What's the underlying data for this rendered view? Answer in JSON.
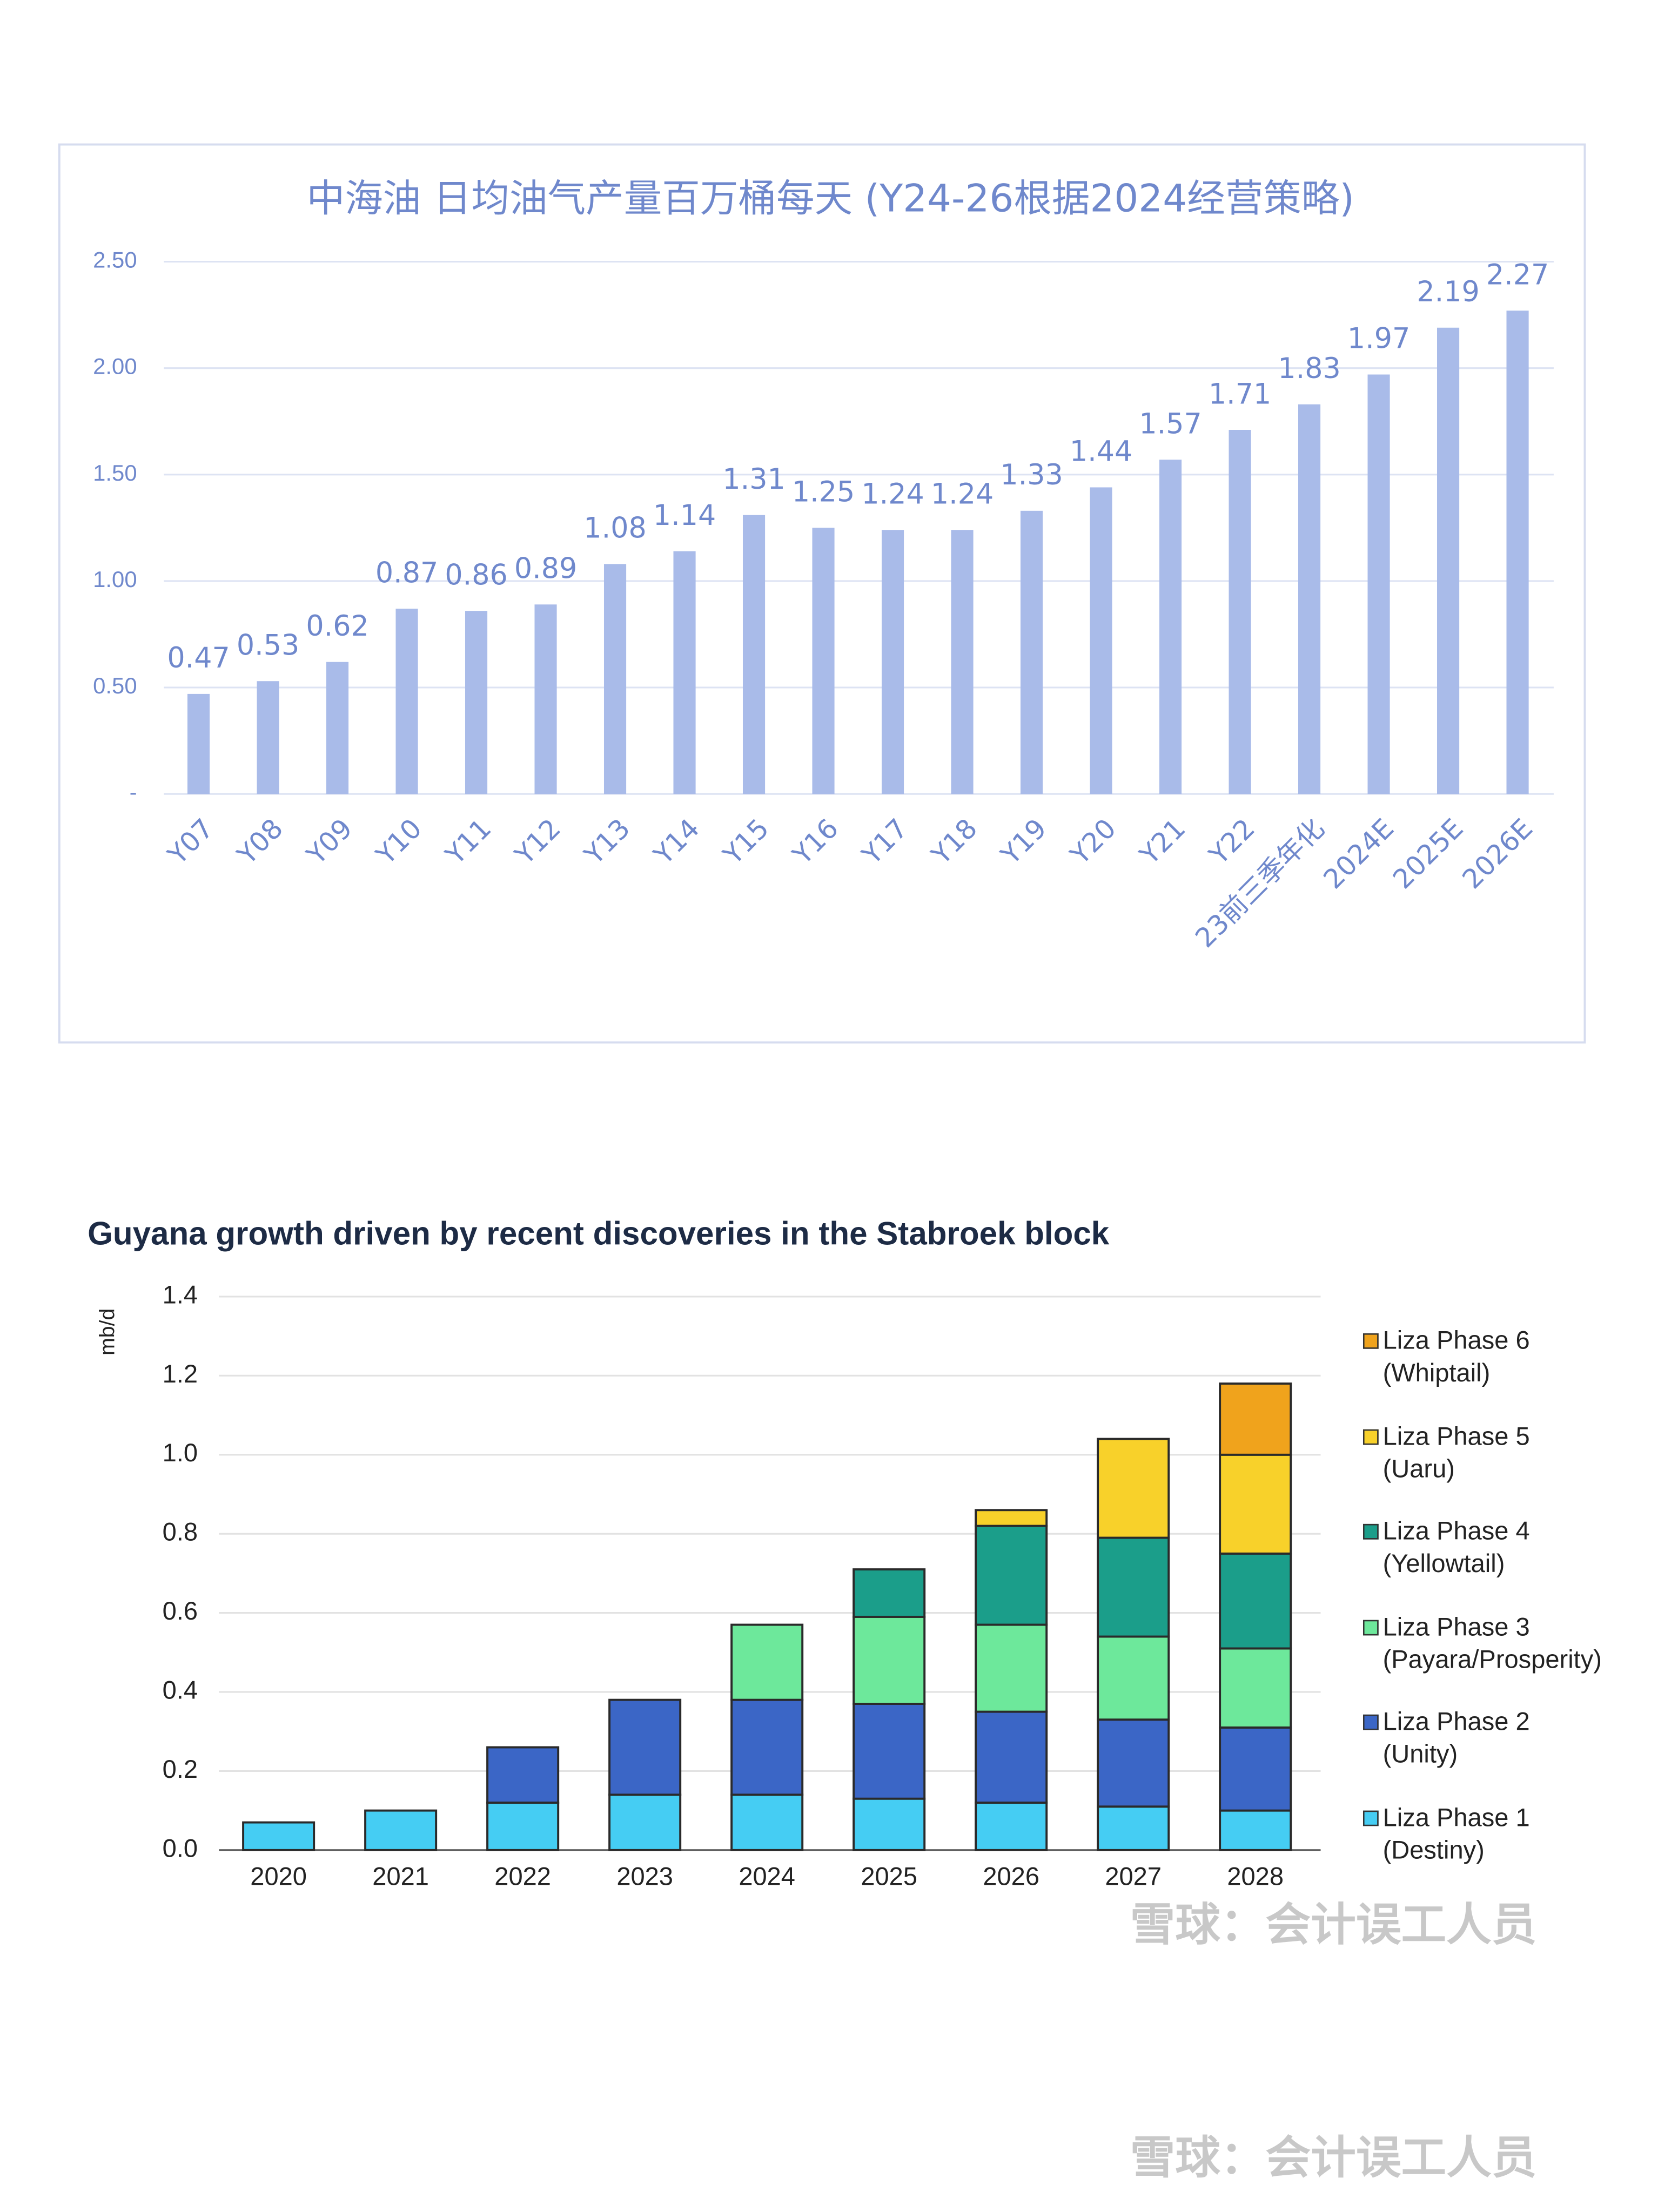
{
  "chart_data": [
    {
      "type": "bar",
      "title": "中海油 日均油气产量百万桶每天 (Y24-26根据2024经营策略)",
      "categories": [
        "Y07",
        "Y08",
        "Y09",
        "Y10",
        "Y11",
        "Y12",
        "Y13",
        "Y14",
        "Y15",
        "Y16",
        "Y17",
        "Y18",
        "Y19",
        "Y20",
        "Y21",
        "Y22",
        "23前三季年化",
        "2024E",
        "2025E",
        "2026E"
      ],
      "values": [
        0.47,
        0.53,
        0.62,
        0.87,
        0.86,
        0.89,
        1.08,
        1.14,
        1.31,
        1.25,
        1.24,
        1.24,
        1.33,
        1.44,
        1.57,
        1.71,
        1.83,
        1.97,
        2.19,
        2.27
      ],
      "color": "#a9bbe9",
      "ylim": [
        0,
        2.5
      ],
      "yticks": [
        {
          "value": 0,
          "label": "-"
        },
        {
          "value": 0.5,
          "label": "0.50"
        },
        {
          "value": 1,
          "label": "1.00"
        },
        {
          "value": 1.5,
          "label": "1.50"
        },
        {
          "value": 2,
          "label": "2.00"
        },
        {
          "value": 2.5,
          "label": "2.50"
        }
      ],
      "grid": true
    },
    {
      "type": "stacked_bar",
      "title": "Guyana growth driven by recent discoveries in the Stabroek block",
      "y_label": "mb/d",
      "categories": [
        "2020",
        "2021",
        "2022",
        "2023",
        "2024",
        "2025",
        "2026",
        "2027",
        "2028"
      ],
      "series": [
        {
          "name": "Liza Phase 1 (Destiny)",
          "color": "#45cdf3",
          "values": [
            0.07,
            0.1,
            0.12,
            0.14,
            0.14,
            0.13,
            0.12,
            0.11,
            0.1
          ]
        },
        {
          "name": "Liza Phase 2 (Unity)",
          "color": "#3b66c6",
          "values": [
            null,
            null,
            0.14,
            0.24,
            0.24,
            0.24,
            0.23,
            0.22,
            0.21
          ]
        },
        {
          "name": "Liza Phase 3 (Payara/Prosperity)",
          "color": "#6de89b",
          "values": [
            null,
            null,
            null,
            null,
            0.19,
            0.22,
            0.22,
            0.21,
            0.2
          ]
        },
        {
          "name": "Liza Phase 4 (Yellowtail)",
          "color": "#1b9e8a",
          "values": [
            null,
            null,
            null,
            null,
            null,
            0.12,
            0.25,
            0.25,
            0.24
          ]
        },
        {
          "name": "Liza Phase 5 (Uaru)",
          "color": "#f8d12a",
          "values": [
            null,
            null,
            null,
            null,
            null,
            null,
            0.04,
            0.25,
            0.25
          ]
        },
        {
          "name": "Liza Phase 6 (Whiptail)",
          "color": "#f0a31c",
          "values": [
            null,
            null,
            null,
            null,
            null,
            null,
            null,
            null,
            0.18
          ]
        }
      ],
      "ylim": [
        0,
        1.4
      ],
      "yticks": [
        {
          "value": 0,
          "label": "0.0"
        },
        0.2,
        0.4,
        0.6,
        0.8,
        {
          "value": 1,
          "label": "1.0"
        },
        1.2,
        1.4
      ],
      "grid": true
    }
  ],
  "watermarks": [
    "雪球：会计误工人员",
    "雪球：会计误工人员"
  ]
}
